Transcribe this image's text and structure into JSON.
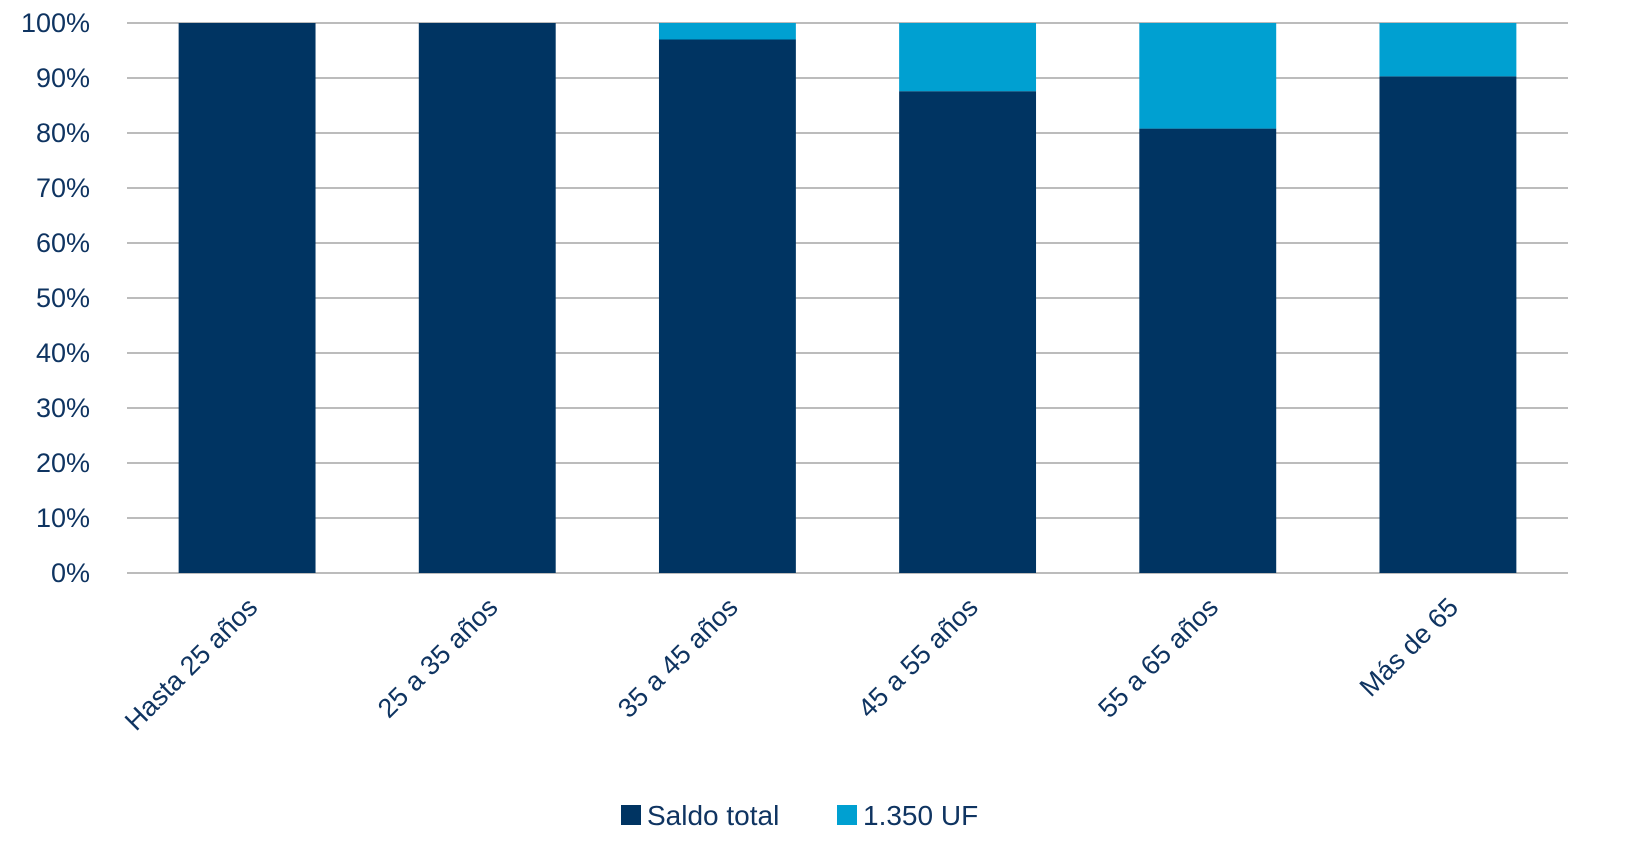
{
  "colors": {
    "saldo_total": "#003462",
    "uf_1350": "#00a0d1",
    "text": "#0f3461",
    "grid": "#a6a6a6"
  },
  "chart_data": {
    "type": "bar",
    "stacked": true,
    "percent_stacked": true,
    "categories": [
      "Hasta 25 años",
      "25 a 35 años",
      "35 a 45 años",
      "45 a 55 años",
      "55 a 65 años",
      "Más de 65"
    ],
    "series": [
      {
        "name": "Saldo total",
        "values": [
          100,
          100,
          97,
          87.6,
          80.8,
          90.3
        ]
      },
      {
        "name": "1.350 UF",
        "values": [
          0,
          0,
          3,
          12.4,
          19.2,
          9.7
        ]
      }
    ],
    "ylim": [
      0,
      100
    ],
    "yticks": [
      "0%",
      "10%",
      "20%",
      "30%",
      "40%",
      "50%",
      "60%",
      "70%",
      "80%",
      "90%",
      "100%"
    ],
    "grid": true,
    "legend": "bottom",
    "xlabel": "",
    "ylabel": ""
  }
}
